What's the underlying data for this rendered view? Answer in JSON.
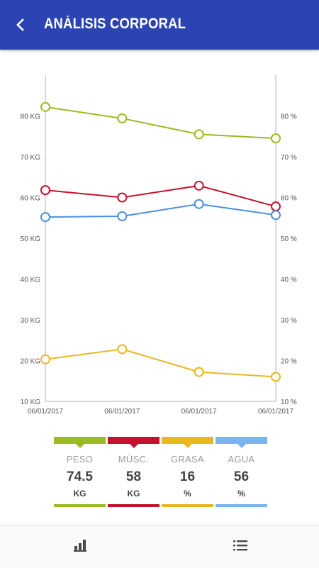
{
  "header": {
    "title": "ANÁLISIS CORPORAL",
    "back_icon": "chevron-left-icon"
  },
  "colors": {
    "appbar": "#2c44b3",
    "peso": "#9bbb23",
    "musc": "#c4122e",
    "grasa": "#e8b820",
    "agua": "#4a8fe0"
  },
  "chart_data": {
    "type": "line",
    "x": [
      "06/01/2017",
      "06/01/2017",
      "06/01/2017",
      "06/01/2017"
    ],
    "left_axis": {
      "ticks": [
        "10 KG",
        "20 KG",
        "30 KG",
        "40 KG",
        "50 KG",
        "60 KG",
        "70 KG",
        "80 KG"
      ],
      "range": [
        10,
        90
      ]
    },
    "right_axis": {
      "ticks": [
        "10 %",
        "20 %",
        "30 %",
        "40 %",
        "50 %",
        "60 %",
        "70 %",
        "80 %"
      ],
      "range": [
        10,
        90
      ]
    },
    "series": [
      {
        "key": "peso",
        "color": "#9bbb23",
        "values": [
          82.2,
          79.4,
          75.5,
          74.5
        ]
      },
      {
        "key": "musc",
        "color": "#c4122e",
        "values": [
          61.8,
          60.0,
          62.9,
          57.8
        ]
      },
      {
        "key": "agua",
        "color": "#4a8fe0",
        "values": [
          55.2,
          55.4,
          58.4,
          55.7
        ]
      },
      {
        "key": "grasa",
        "color": "#e8b820",
        "values": [
          20.3,
          22.8,
          17.2,
          16.0
        ]
      }
    ]
  },
  "legend": [
    {
      "label": "PESO",
      "value": "74.5",
      "unit": "KG",
      "color": "#9bbb23"
    },
    {
      "label": "MÚSC.",
      "value": "58",
      "unit": "KG",
      "color": "#c4122e"
    },
    {
      "label": "GRASA",
      "value": "16",
      "unit": "%",
      "color": "#e8b820"
    },
    {
      "label": "AGUA",
      "value": "56",
      "unit": "%",
      "color": "#7ab4ef"
    }
  ],
  "bottom_nav": {
    "chart_icon": "bar-chart-icon",
    "list_icon": "list-icon"
  }
}
